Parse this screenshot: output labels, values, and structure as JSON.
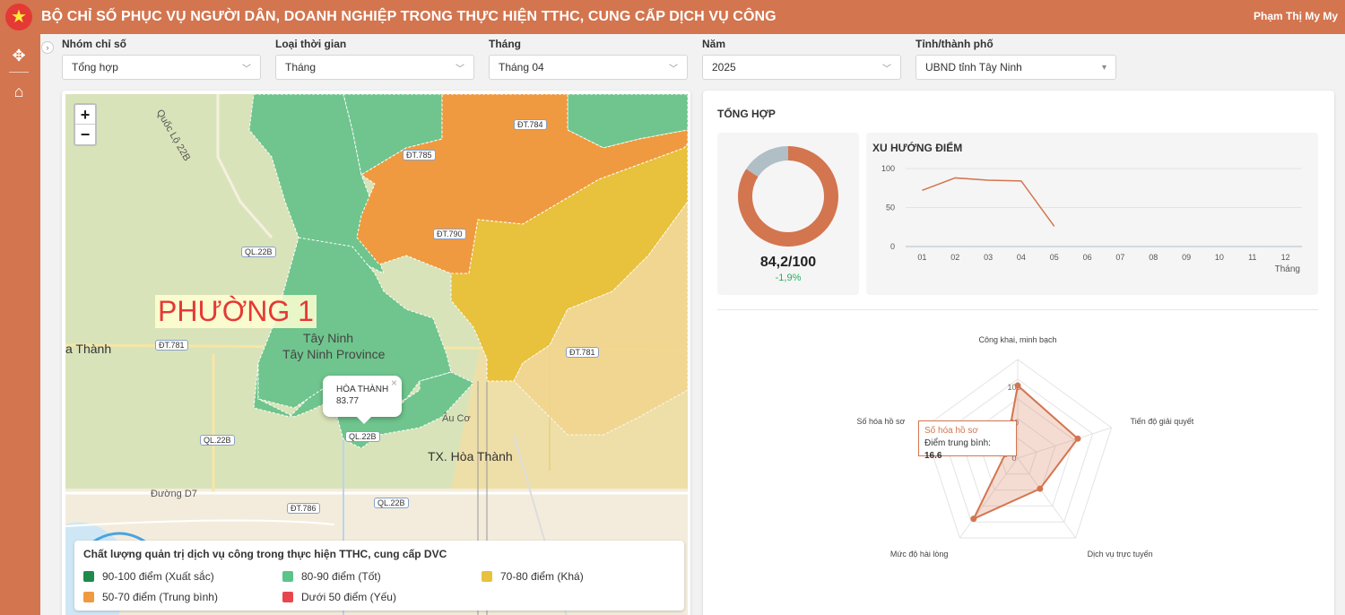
{
  "header": {
    "title": "BỘ CHỈ SỐ PHỤC VỤ NGƯỜI DÂN, DOANH NGHIỆP TRONG THỰC HIỆN TTHC, CUNG CẤP DỊCH VỤ CÔNG",
    "user": "Phạm Thị My My",
    "emblem_icon": "★"
  },
  "sidebar": {
    "items": [
      {
        "icon": "move-icon",
        "glyph": "✥"
      },
      {
        "icon": "home-icon",
        "glyph": "⌂"
      }
    ],
    "collapse_glyph": "›"
  },
  "filters": [
    {
      "label": "Nhóm chỉ số",
      "value": "Tổng hợp"
    },
    {
      "label": "Loại thời gian",
      "value": "Tháng"
    },
    {
      "label": "Tháng",
      "value": "Tháng 04"
    },
    {
      "label": "Năm",
      "value": "2025"
    },
    {
      "label": "Tỉnh/thành phố",
      "value": "UBND tỉnh Tây Ninh"
    }
  ],
  "map": {
    "zoom_in": "+",
    "zoom_out": "−",
    "ward_label": "PHƯỜNG 1",
    "places": {
      "tay_ninh": "Tây Ninh",
      "tay_ninh_province": "Tây Ninh Province",
      "tx_hoa_thanh": "TX. Hòa Thành",
      "hoa_thanh_left": "a Thành",
      "au_co": "Âu Cơ"
    },
    "roads": {
      "ql22b_1": "QL.22B",
      "ql22b_2": "QL.22B",
      "ql22b_3": "QL.22B",
      "ql22b_4": "QL.22B",
      "dt781_1": "ĐT.781",
      "dt781_2": "ĐT.781",
      "dt786": "ĐT.786",
      "dt790": "ĐT.790",
      "dt785": "ĐT.785",
      "dt784": "ĐT.784",
      "quoc_lo": "Quốc Lộ 22B",
      "duong_d7": "Đường D7"
    },
    "popup": {
      "name": "HÒA THÀNH",
      "score": "83.77",
      "close": "×"
    },
    "legend": {
      "title": "Chất lượng quản trị dịch vụ công trong thực hiện TTHC, cung cấp DVC",
      "items": [
        {
          "label": "90-100 điểm (Xuất sắc)",
          "color": "#1e8a4c"
        },
        {
          "label": "80-90 điểm (Tốt)",
          "color": "#5cc38a"
        },
        {
          "label": "70-80 điểm (Khá)",
          "color": "#e8c13d"
        },
        {
          "label": "50-70 điểm (Trung bình)",
          "color": "#ef9a40"
        },
        {
          "label": "Dưới 50 điểm (Yếu)",
          "color": "#e8464e"
        }
      ]
    }
  },
  "summary": {
    "title": "TỔNG HỢP",
    "score_text": "84,2/100",
    "score_value": 84.2,
    "score_max": 100,
    "delta": "-1,9%",
    "trend_title": "XU HƯỚNG ĐIỂM",
    "tooltip": {
      "name": "Số hóa hồ sơ",
      "label": "Điểm trung bình:",
      "value": "16.6"
    }
  },
  "chart_data": [
    {
      "type": "pie",
      "title": "",
      "values": [
        84.2,
        15.8
      ],
      "colors": [
        "#d3754f",
        "#b0bec5"
      ]
    },
    {
      "type": "line",
      "title": "XU HƯỚNG ĐIỂM",
      "xlabel": "Tháng",
      "ylabel": "",
      "categories": [
        "01",
        "02",
        "03",
        "04",
        "05",
        "06",
        "07",
        "08",
        "09",
        "10",
        "11",
        "12"
      ],
      "values": [
        72,
        88,
        85,
        84,
        26,
        null,
        null,
        null,
        null,
        null,
        null,
        null
      ],
      "yticks": [
        0,
        50,
        100
      ],
      "ylim": [
        0,
        100
      ],
      "color": "#d3754f"
    },
    {
      "type": "radar",
      "title": "",
      "axes": [
        "Công khai, minh bạch",
        "Tiến độ giải quyết",
        "Dịch vụ trực tuyến",
        "Mức độ hài lòng",
        "Số hóa hồ sơ"
      ],
      "values": [
        92,
        80,
        48,
        95,
        16.6
      ],
      "rticks": [
        "100",
        "50",
        "0"
      ],
      "rlim": [
        0,
        100
      ],
      "color": "#d3754f"
    }
  ]
}
